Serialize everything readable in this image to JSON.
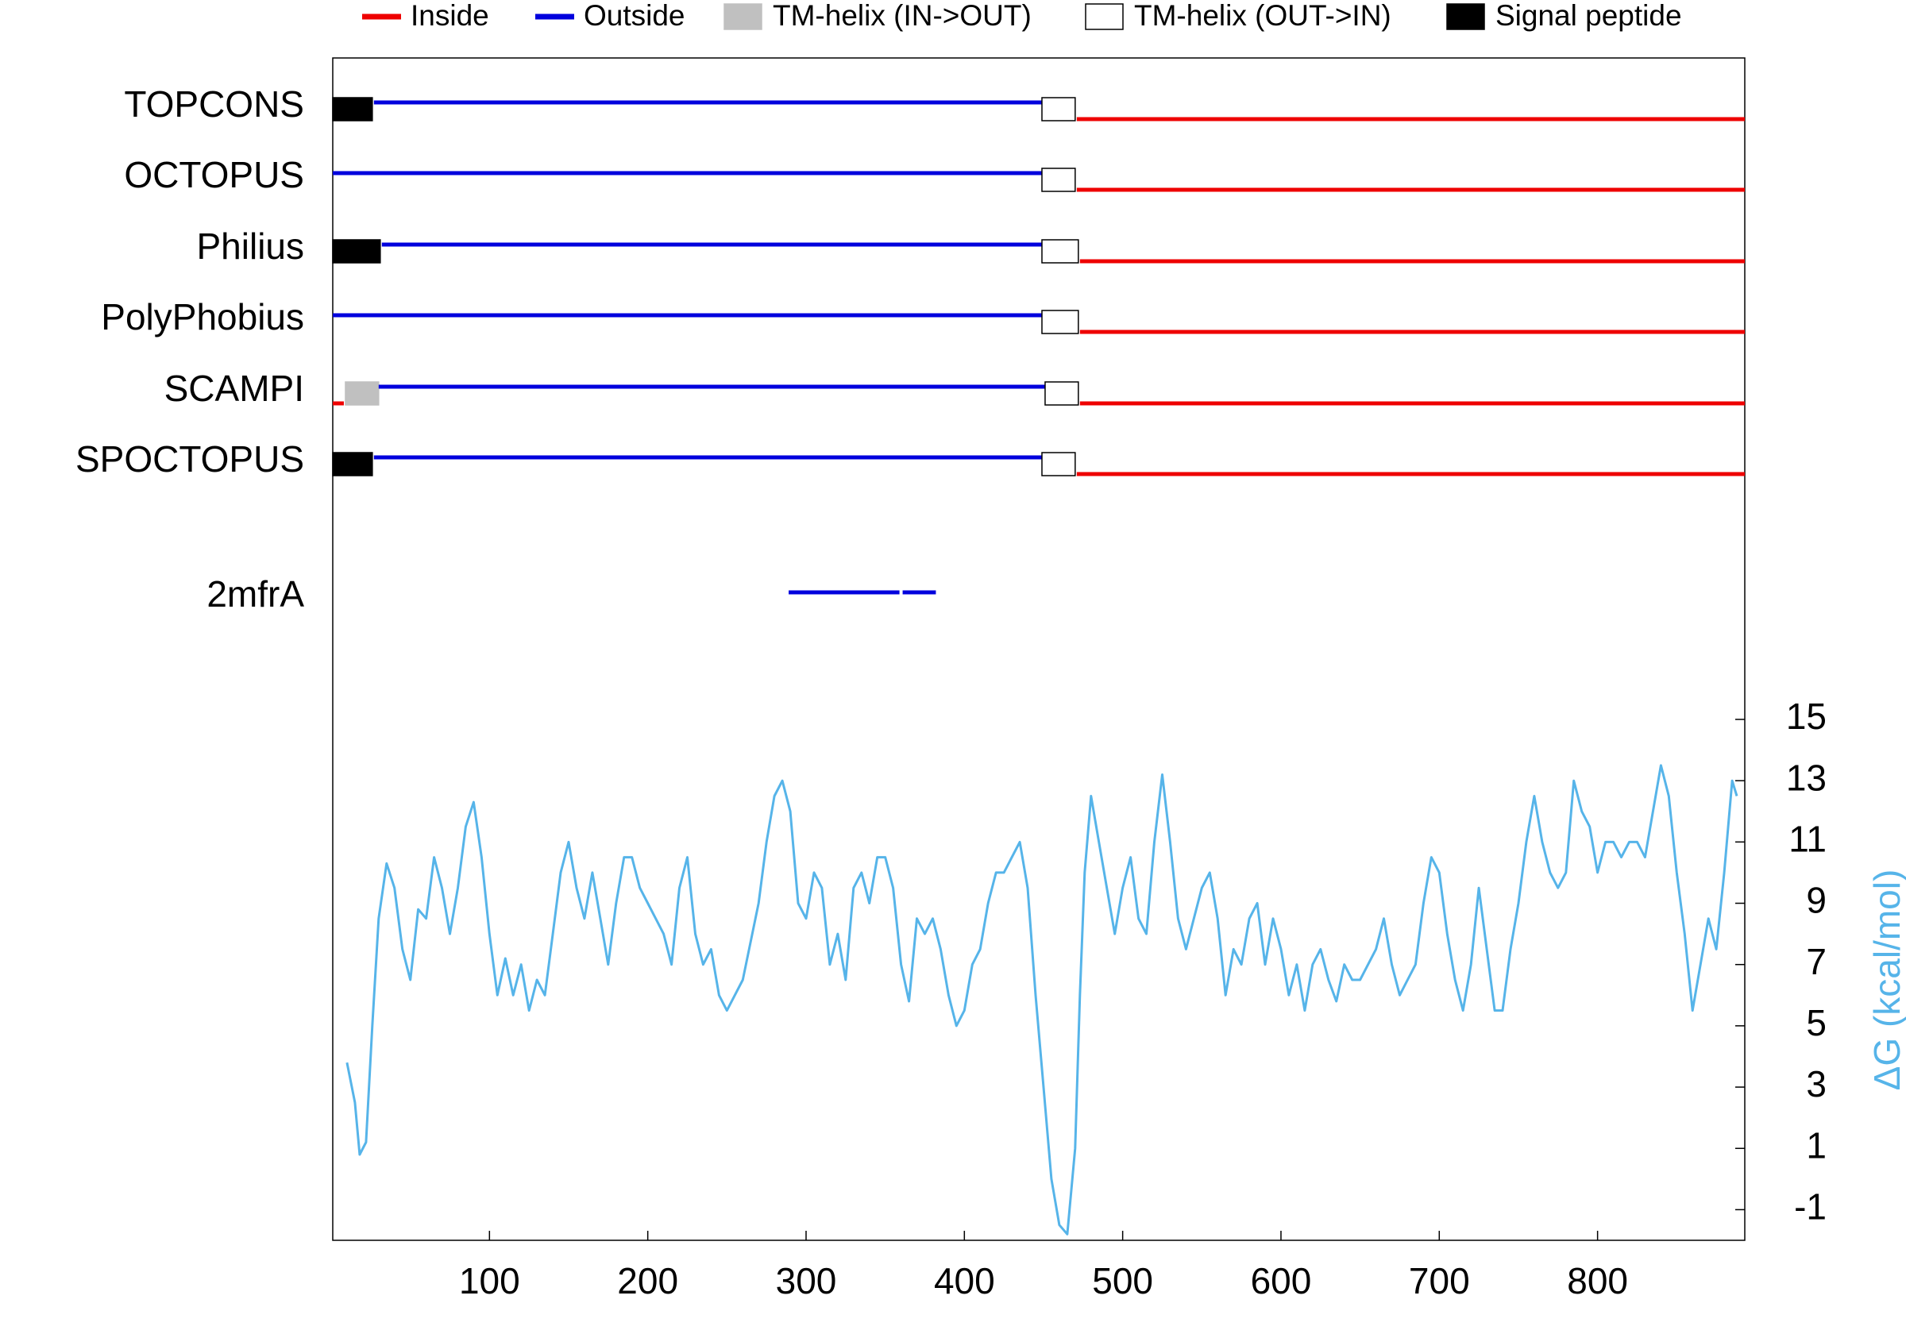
{
  "chart_data": {
    "type": "topology",
    "legend": [
      {
        "label": "Inside",
        "color": "#ee0000",
        "marker": "line"
      },
      {
        "label": "Outside",
        "color": "#0000dd",
        "marker": "line"
      },
      {
        "label": "TM-helix (IN->OUT)",
        "color": "#c0c0c0",
        "marker": "box"
      },
      {
        "label": "TM-helix (OUT->IN)",
        "color": "#ffffff",
        "marker": "box"
      },
      {
        "label": "Signal peptide",
        "color": "#000000",
        "marker": "box"
      }
    ],
    "tracks": [
      {
        "name": "TOPCONS",
        "segments": [
          {
            "start": 1,
            "end": 26,
            "type": "Signal peptide"
          },
          {
            "start": 27,
            "end": 449,
            "type": "Outside"
          },
          {
            "start": 449,
            "end": 470,
            "type": "TM-helix (OUT->IN)"
          },
          {
            "start": 471,
            "end": 893,
            "type": "Inside"
          }
        ]
      },
      {
        "name": "OCTOPUS",
        "segments": [
          {
            "start": 1,
            "end": 449,
            "type": "Outside"
          },
          {
            "start": 449,
            "end": 470,
            "type": "TM-helix (OUT->IN)"
          },
          {
            "start": 471,
            "end": 893,
            "type": "Inside"
          }
        ]
      },
      {
        "name": "Philius",
        "segments": [
          {
            "start": 1,
            "end": 31,
            "type": "Signal peptide"
          },
          {
            "start": 32,
            "end": 449,
            "type": "Outside"
          },
          {
            "start": 449,
            "end": 472,
            "type": "TM-helix (OUT->IN)"
          },
          {
            "start": 473,
            "end": 893,
            "type": "Inside"
          }
        ]
      },
      {
        "name": "PolyPhobius",
        "segments": [
          {
            "start": 1,
            "end": 449,
            "type": "Outside"
          },
          {
            "start": 449,
            "end": 472,
            "type": "TM-helix (OUT->IN)"
          },
          {
            "start": 473,
            "end": 893,
            "type": "Inside"
          }
        ]
      },
      {
        "name": "SCAMPI",
        "segments": [
          {
            "start": 1,
            "end": 8,
            "type": "Inside"
          },
          {
            "start": 9,
            "end": 30,
            "type": "TM-helix (IN->OUT)"
          },
          {
            "start": 30,
            "end": 451,
            "type": "Outside"
          },
          {
            "start": 451,
            "end": 472,
            "type": "TM-helix (OUT->IN)"
          },
          {
            "start": 473,
            "end": 893,
            "type": "Inside"
          }
        ]
      },
      {
        "name": "SPOCTOPUS",
        "segments": [
          {
            "start": 1,
            "end": 26,
            "type": "Signal peptide"
          },
          {
            "start": 27,
            "end": 449,
            "type": "Outside"
          },
          {
            "start": 449,
            "end": 470,
            "type": "TM-helix (OUT->IN)"
          },
          {
            "start": 471,
            "end": 893,
            "type": "Inside"
          }
        ]
      },
      {
        "name": "2mfrA",
        "segments": [
          {
            "start": 289,
            "end": 359,
            "type": "Outside"
          },
          {
            "start": 361,
            "end": 382,
            "type": "Outside"
          }
        ]
      }
    ],
    "dg_curve": {
      "color": "#56b4e9",
      "x": [
        10,
        15,
        18,
        22,
        26,
        30,
        35,
        40,
        45,
        50,
        55,
        60,
        65,
        70,
        75,
        80,
        85,
        90,
        95,
        100,
        105,
        110,
        115,
        120,
        125,
        130,
        135,
        140,
        145,
        150,
        155,
        160,
        165,
        170,
        175,
        180,
        185,
        190,
        195,
        200,
        210,
        215,
        220,
        225,
        230,
        235,
        240,
        245,
        250,
        255,
        260,
        270,
        275,
        280,
        285,
        290,
        295,
        300,
        305,
        310,
        315,
        320,
        325,
        330,
        335,
        340,
        345,
        350,
        355,
        360,
        365,
        370,
        375,
        380,
        385,
        390,
        395,
        400,
        405,
        410,
        415,
        420,
        425,
        430,
        435,
        440,
        445,
        450,
        455,
        460,
        465,
        470,
        473,
        476,
        480,
        485,
        490,
        495,
        500,
        505,
        510,
        515,
        520,
        525,
        530,
        535,
        540,
        545,
        550,
        555,
        560,
        565,
        570,
        575,
        580,
        585,
        590,
        595,
        600,
        605,
        610,
        615,
        620,
        625,
        630,
        635,
        640,
        645,
        650,
        655,
        660,
        665,
        670,
        675,
        680,
        685,
        690,
        695,
        700,
        705,
        710,
        715,
        720,
        725,
        730,
        735,
        740,
        745,
        750,
        755,
        760,
        765,
        770,
        775,
        780,
        785,
        790,
        795,
        800,
        805,
        810,
        815,
        820,
        825,
        830,
        835,
        840,
        845,
        850,
        855,
        860,
        865,
        870,
        875,
        880,
        885,
        888
      ],
      "values": [
        3.8,
        2.5,
        0.8,
        1.2,
        5,
        8.5,
        10.3,
        9.5,
        7.5,
        6.5,
        8.8,
        8.5,
        10.5,
        9.5,
        8,
        9.5,
        11.5,
        12.3,
        10.5,
        8,
        6,
        7.2,
        6,
        7,
        5.5,
        6.5,
        6,
        8,
        10,
        11,
        9.5,
        8.5,
        10,
        8.5,
        7,
        9,
        10.5,
        10.5,
        9.5,
        9,
        8,
        7,
        9.5,
        10.5,
        8,
        7,
        7.5,
        6,
        5.5,
        6,
        6.5,
        9,
        11,
        12.5,
        13,
        12,
        9,
        8.5,
        10,
        9.5,
        7,
        8,
        6.5,
        9.5,
        10,
        9,
        10.5,
        10.5,
        9.5,
        7,
        5.8,
        8.5,
        8,
        8.5,
        7.5,
        6,
        5,
        5.5,
        7,
        7.5,
        9,
        10,
        10,
        10.5,
        11,
        9.5,
        6,
        3,
        0,
        -1.5,
        -1.8,
        1,
        6,
        10,
        12.5,
        11,
        9.5,
        8,
        9.5,
        10.5,
        8.5,
        8,
        11,
        13.2,
        11,
        8.5,
        7.5,
        8.5,
        9.5,
        10,
        8.5,
        6,
        7.5,
        7,
        8.5,
        9,
        7,
        8.5,
        7.5,
        6,
        7,
        5.5,
        7,
        7.5,
        6.5,
        5.8,
        7,
        6.5,
        6.5,
        7,
        7.5,
        8.5,
        7,
        6,
        6.5,
        7,
        9,
        10.5,
        10,
        8,
        6.5,
        5.5,
        7,
        9.5,
        7.5,
        5.5,
        5.5,
        7.5,
        9,
        11,
        12.5,
        11,
        10,
        9.5,
        10,
        13,
        12,
        11.5,
        10,
        11,
        11,
        10.5,
        11,
        11,
        10.5,
        12,
        13.5,
        12.5,
        10,
        8,
        5.5,
        7,
        8.5,
        7.5,
        10,
        13,
        12.5
      ]
    },
    "xlim": [
      1,
      893
    ],
    "xticks": [
      100,
      200,
      300,
      400,
      500,
      600,
      700,
      800
    ],
    "ylabel": "ΔG (kcal/mol)",
    "ylim": [
      -2,
      15
    ],
    "yticks": [
      -1,
      1,
      3,
      5,
      7,
      9,
      11,
      13,
      15
    ]
  }
}
